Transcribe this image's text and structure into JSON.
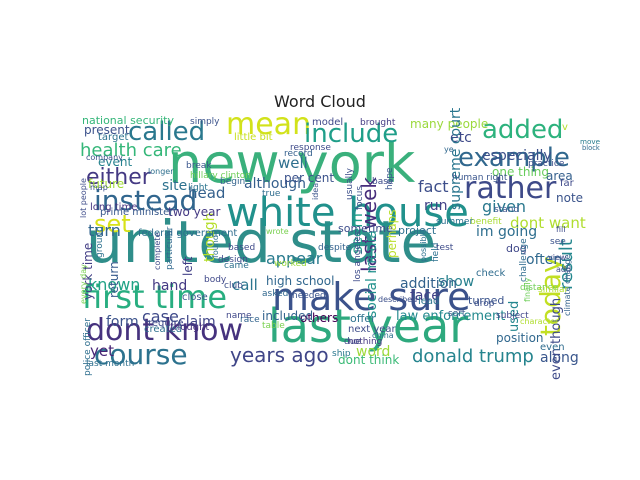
{
  "chart_data": {
    "type": "wordcloud",
    "title": "Word Cloud",
    "words": [
      {
        "text": "united state",
        "color": "#2f8e8a",
        "major": true
      },
      {
        "text": "new york",
        "color": "#3ab07c",
        "major": true
      },
      {
        "text": "white house",
        "color": "#21918c",
        "major": true
      },
      {
        "text": "last year",
        "color": "#2ea97e",
        "major": true
      },
      {
        "text": "make sure",
        "color": "#3b528b",
        "major": true
      },
      {
        "text": "first time",
        "color": "#28ae80",
        "major": true
      },
      {
        "text": "dont know",
        "color": "#46327e",
        "major": true
      },
      {
        "text": "course",
        "color": "#2c728e",
        "major": true
      },
      {
        "text": "instead",
        "color": "#31668e",
        "major": true
      },
      {
        "text": "rather",
        "color": "#3e4a89",
        "major": true
      },
      {
        "text": "mean",
        "color": "#d2e21b",
        "major": true
      },
      {
        "text": "include",
        "color": "#1f9e89",
        "major": true
      },
      {
        "text": "called",
        "color": "#2a788e",
        "major": true
      },
      {
        "text": "added",
        "color": "#2db27d",
        "major": true
      },
      {
        "text": "example",
        "color": "#31688e",
        "major": true
      },
      {
        "text": "today",
        "color": "#c2df23",
        "major": true
      },
      {
        "text": "set",
        "color": "#d8e219",
        "major": true
      },
      {
        "text": "either",
        "color": "#443983",
        "major": true
      },
      {
        "text": "years ago",
        "color": "#404688",
        "major": true
      },
      {
        "text": "health care",
        "color": "#35b779",
        "major": true
      },
      {
        "text": "last week",
        "color": "#472d7b",
        "major": true
      },
      {
        "text": "result",
        "color": "#24878e",
        "major": true
      },
      {
        "text": "donald trump",
        "color": "#25848e",
        "major": true
      },
      {
        "text": "well",
        "color": "#2e6f8e",
        "major": false
      },
      {
        "text": "although",
        "color": "#355f8d",
        "major": false
      },
      {
        "text": "appear",
        "color": "#297b8e",
        "major": false
      },
      {
        "text": "though",
        "color": "#b5de2b",
        "major": false
      },
      {
        "text": "fact",
        "color": "#3d4e8a",
        "major": false
      },
      {
        "text": "seem",
        "color": "#1fa088",
        "major": false
      },
      {
        "text": "given",
        "color": "#2a788e",
        "major": false
      },
      {
        "text": "turn",
        "color": "#32648e",
        "major": false
      },
      {
        "text": "known",
        "color": "#20a386",
        "major": false
      },
      {
        "text": "case",
        "color": "#3e4989",
        "major": false
      },
      {
        "text": "form",
        "color": "#3b528b",
        "major": false
      },
      {
        "text": "claim",
        "color": "#404588",
        "major": false
      },
      {
        "text": "yet",
        "color": "#482576",
        "major": false
      },
      {
        "text": "head",
        "color": "#34608d",
        "major": false
      },
      {
        "text": "call",
        "color": "#2b758e",
        "major": false
      },
      {
        "text": "hand",
        "color": "#443a83",
        "major": false
      },
      {
        "text": "site",
        "color": "#2c718e",
        "major": false
      },
      {
        "text": "dont want",
        "color": "#b0dd2f",
        "major": false
      },
      {
        "text": "note",
        "color": "#3a538b",
        "major": false
      },
      {
        "text": "often",
        "color": "#30698e",
        "major": false
      },
      {
        "text": "show",
        "color": "#27808e",
        "major": false
      },
      {
        "text": "addition",
        "color": "#33628d",
        "major": false
      },
      {
        "text": "face",
        "color": "#414287",
        "major": false
      },
      {
        "text": "word",
        "color": "#9fda3a",
        "major": false
      },
      {
        "text": "used",
        "color": "#24868e",
        "major": false
      },
      {
        "text": "along",
        "color": "#39568c",
        "major": false
      },
      {
        "text": "position",
        "color": "#31688e",
        "major": false
      },
      {
        "text": "one thing",
        "color": "#67cc5c",
        "major": false
      },
      {
        "text": "many people",
        "color": "#9bd93c",
        "major": false
      },
      {
        "text": "etc",
        "color": "#3e4989",
        "major": false
      },
      {
        "text": "especially",
        "color": "#3c4f8a",
        "major": false
      },
      {
        "text": "area",
        "color": "#35608d",
        "major": false
      },
      {
        "text": "im going",
        "color": "#2e6e8e",
        "major": false
      },
      {
        "text": "present",
        "color": "#3b518b",
        "major": false
      },
      {
        "text": "event",
        "color": "#26828e",
        "major": false
      },
      {
        "text": "two year",
        "color": "#443983",
        "major": false
      },
      {
        "text": "high school",
        "color": "#31678e",
        "major": false
      },
      {
        "text": "others",
        "color": "#440154",
        "major": false
      },
      {
        "text": "law enforcement",
        "color": "#23898e",
        "major": false
      },
      {
        "text": "social media",
        "color": "#21918c",
        "major": false
      },
      {
        "text": "supreme court",
        "color": "#2a768e",
        "major": false
      },
      {
        "text": "even though",
        "color": "#3e4a89",
        "major": false
      },
      {
        "text": "york time",
        "color": "#433e85",
        "major": false
      },
      {
        "text": "left",
        "color": "#424086",
        "major": false
      },
      {
        "text": "future",
        "color": "#a2da37",
        "major": false
      },
      {
        "text": "per cent",
        "color": "#3b528b",
        "major": false
      },
      {
        "text": "sometime",
        "color": "#3d4d8a",
        "major": false
      },
      {
        "text": "project",
        "color": "#2d708e",
        "major": false
      },
      {
        "text": "return",
        "color": "#375a8c",
        "major": false
      },
      {
        "text": "run",
        "color": "#424186",
        "major": false
      },
      {
        "text": "next year",
        "color": "#3e4c8a",
        "major": false
      },
      {
        "text": "dont think",
        "color": "#3aba76",
        "major": false
      },
      {
        "text": "perhaps",
        "color": "#b8de29",
        "major": false
      },
      {
        "text": "dog",
        "color": "#3f4788",
        "major": false
      },
      {
        "text": "lead",
        "color": "#2c738e",
        "major": false
      },
      {
        "text": "offer",
        "color": "#2c728e",
        "major": false
      },
      {
        "text": "included",
        "color": "#33638d",
        "major": false
      },
      {
        "text": "national security",
        "color": "#34b679",
        "major": false
      },
      {
        "text": "model",
        "color": "#3f4889",
        "major": false
      },
      {
        "text": "brought",
        "color": "#443983",
        "major": false
      },
      {
        "text": "little bit",
        "color": "#c8e020",
        "major": false
      },
      {
        "text": "simply",
        "color": "#3b528b",
        "major": false
      },
      {
        "text": "target",
        "color": "#2c718e",
        "major": false
      },
      {
        "text": "response",
        "color": "#3e4a89",
        "major": false
      },
      {
        "text": "record",
        "color": "#35608d",
        "major": false
      },
      {
        "text": "prime minister",
        "color": "#38598c",
        "major": false
      },
      {
        "text": "federal government",
        "color": "#2e6d8e",
        "major": false
      },
      {
        "text": "long time",
        "color": "#463480",
        "major": false
      },
      {
        "text": "human right",
        "color": "#39558c",
        "major": false
      },
      {
        "text": "practice",
        "color": "#3c4f8a",
        "major": false
      },
      {
        "text": "move",
        "color": "#287c8e",
        "major": false
      },
      {
        "text": "block",
        "color": "#2f6b8e",
        "major": false
      },
      {
        "text": "climate change",
        "color": "#33638d",
        "major": false
      },
      {
        "text": "police officer",
        "color": "#2e6e8e",
        "major": false
      },
      {
        "text": "last month",
        "color": "#2e6f8e",
        "major": false
      },
      {
        "text": "created",
        "color": "#2d708e",
        "major": false
      },
      {
        "text": "close",
        "color": "#39568c",
        "major": false
      },
      {
        "text": "require",
        "color": "#3e4a89",
        "major": false
      },
      {
        "text": "thought",
        "color": "#46317e",
        "major": false
      },
      {
        "text": "needed",
        "color": "#3a548c",
        "major": false
      },
      {
        "text": "asked",
        "color": "#31688e",
        "major": false
      },
      {
        "text": "nothing",
        "color": "#453781",
        "major": false
      },
      {
        "text": "ship",
        "color": "#2a788e",
        "major": false
      },
      {
        "text": "due",
        "color": "#3f4889",
        "major": false
      },
      {
        "text": "described",
        "color": "#3c4f8a",
        "major": false
      },
      {
        "text": "turned",
        "color": "#3a548c",
        "major": false
      },
      {
        "text": "subject",
        "color": "#404588",
        "major": false
      },
      {
        "text": "challenge",
        "color": "#2f6c8e",
        "major": false
      },
      {
        "text": "design",
        "color": "#3e4c8a",
        "major": false
      },
      {
        "text": "came",
        "color": "#2d708e",
        "major": false
      },
      {
        "text": "body",
        "color": "#3f4889",
        "major": false
      },
      {
        "text": "break",
        "color": "#39558c",
        "major": false
      },
      {
        "text": "hillary clinton",
        "color": "#6ece58",
        "major": false
      },
      {
        "text": "begin",
        "color": "#33638d",
        "major": false
      },
      {
        "text": "club",
        "color": "#3c4f8a",
        "major": false
      },
      {
        "text": "based",
        "color": "#3e4a89",
        "major": false
      },
      {
        "text": "found",
        "color": "#2d708e",
        "major": false
      },
      {
        "text": "worked",
        "color": "#9bd93c",
        "major": false
      },
      {
        "text": "drop",
        "color": "#3c4f8a",
        "major": false
      },
      {
        "text": "sort",
        "color": "#38588c",
        "major": false
      },
      {
        "text": "check",
        "color": "#2f6c8e",
        "major": false
      },
      {
        "text": "stand",
        "color": "#3a548c",
        "major": false
      },
      {
        "text": "benefit",
        "color": "#a8db34",
        "major": false
      },
      {
        "text": "character",
        "color": "#b0dd2f",
        "major": false
      },
      {
        "text": "table",
        "color": "#7ad151",
        "major": false
      },
      {
        "text": "name",
        "color": "#3f4788",
        "major": false
      },
      {
        "text": "race",
        "color": "#32648e",
        "major": false
      },
      {
        "text": "despite",
        "color": "#33628d",
        "major": false
      },
      {
        "text": "light",
        "color": "#2b748e",
        "major": false
      },
      {
        "text": "company",
        "color": "#3c4f8a",
        "major": false
      },
      {
        "text": "longer",
        "color": "#2e6f8e",
        "major": false
      },
      {
        "text": "every day",
        "color": "#7ad151",
        "major": false
      },
      {
        "text": "lot people",
        "color": "#3e4c8a",
        "major": false
      },
      {
        "text": "distance",
        "color": "#70cf57",
        "major": false
      },
      {
        "text": "finally",
        "color": "#6ece58",
        "major": false
      },
      {
        "text": "similar",
        "color": "#b5de2b",
        "major": false
      },
      {
        "text": "even",
        "color": "#2f6c8e",
        "major": false
      },
      {
        "text": "particular",
        "color": "#31688e",
        "major": false
      },
      {
        "text": "complete",
        "color": "#3e4c8a",
        "major": false
      },
      {
        "text": "far",
        "color": "#3e4989",
        "major": false
      },
      {
        "text": "add",
        "color": "#3e4c8a",
        "major": false
      },
      {
        "text": "hope",
        "color": "#3a548c",
        "major": false
      },
      {
        "text": "focus",
        "color": "#3c4f8a",
        "major": false
      },
      {
        "text": "ground",
        "color": "#2c718e",
        "major": false
      },
      {
        "text": "view",
        "color": "#3e4c8a",
        "major": false
      },
      {
        "text": "see",
        "color": "#3b528b",
        "major": false
      },
      {
        "text": "map",
        "color": "#3c4f8a",
        "major": false
      },
      {
        "text": "china",
        "color": "#2c718e",
        "major": false
      },
      {
        "text": "ye",
        "color": "#31688e",
        "major": false
      },
      {
        "text": "v",
        "color": "#b5de2b",
        "major": false
      },
      {
        "text": "fill",
        "color": "#3e4c8a",
        "major": false
      },
      {
        "text": "summer",
        "color": "#2c718e",
        "major": false
      },
      {
        "text": "los angeles",
        "color": "#3e4c8a",
        "major": false
      },
      {
        "text": "usually",
        "color": "#3c4f8a",
        "major": false
      },
      {
        "text": "idea",
        "color": "#3a548c",
        "major": false
      },
      {
        "text": "base",
        "color": "#3e4c8a",
        "major": false
      },
      {
        "text": "field",
        "color": "#2c718e",
        "major": false
      },
      {
        "text": "possible",
        "color": "#2c718e",
        "major": false
      },
      {
        "text": "test",
        "color": "#3e4c8a",
        "major": false
      },
      {
        "text": "wrote",
        "color": "#7ad151",
        "major": false
      },
      {
        "text": "true",
        "color": "#2f6c8e",
        "major": false
      }
    ]
  }
}
